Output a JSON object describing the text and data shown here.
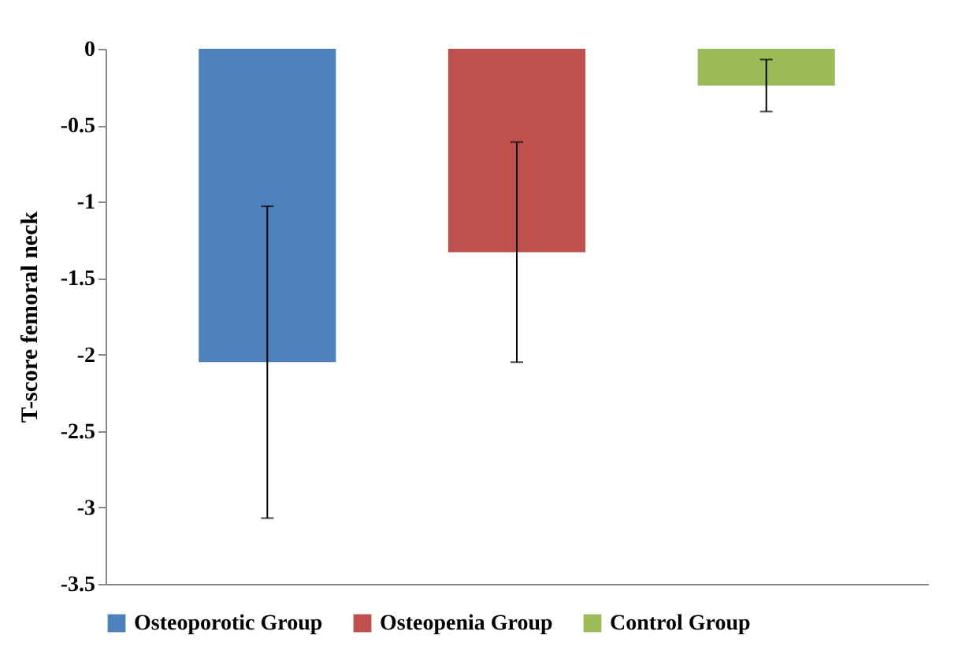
{
  "chart_data": {
    "type": "bar",
    "ylabel": "T-score  femoral neck",
    "categories": [
      null
    ],
    "series": [
      {
        "name": "Osteoporotic Group",
        "color": "#4f81bd",
        "values": [
          -2.05
        ],
        "errors": [
          1.02
        ]
      },
      {
        "name": "Osteopenia Group",
        "color": "#c0504d",
        "values": [
          -1.33
        ],
        "errors": [
          0.72
        ]
      },
      {
        "name": "Control Group",
        "color": "#9bbb59",
        "values": [
          -0.24
        ],
        "errors": [
          0.17
        ]
      }
    ],
    "ylim": [
      -3.5,
      0
    ],
    "yticks": [
      0,
      -0.5,
      -1,
      -1.5,
      -2,
      -2.5,
      -3,
      -3.5
    ],
    "grid": false,
    "legend": "bottom",
    "tick_labels": "y"
  }
}
